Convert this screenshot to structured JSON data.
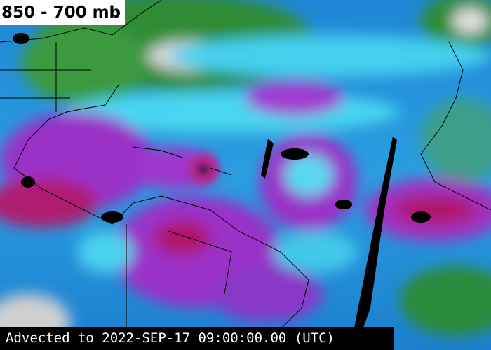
{
  "header": {
    "title": "850 - 700 mb"
  },
  "footer": {
    "timestamp": "Advected to 2022-SEP-17 09:00:00.00 (UTC)"
  }
}
